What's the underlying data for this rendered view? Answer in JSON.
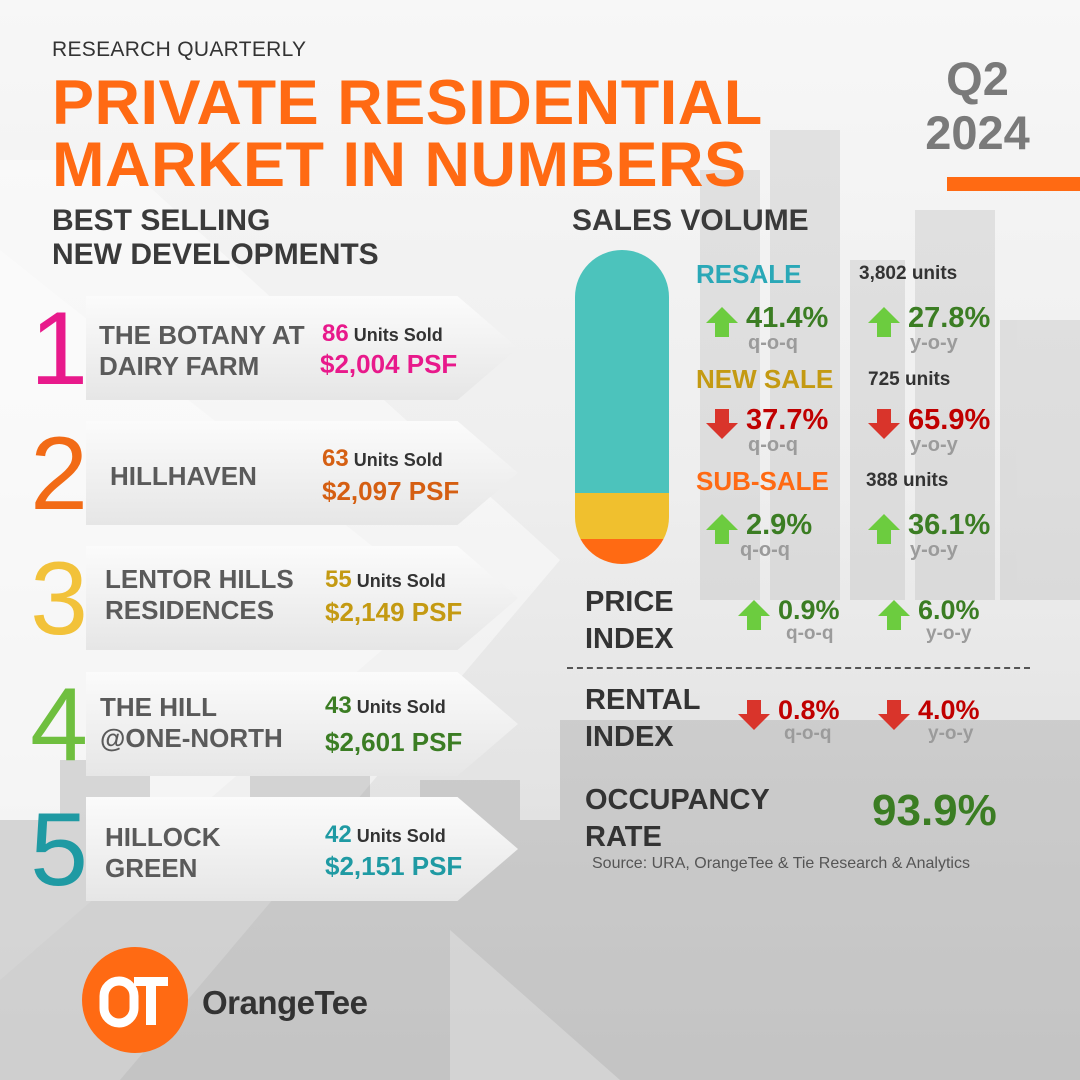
{
  "colors": {
    "brand_orange": "#ff6a13",
    "grey_text": "#3a3a3a",
    "rank1": "#e8198b",
    "rank2": "#f26b16",
    "rank3": "#f2c23a",
    "rank4": "#6fbf3f",
    "rank5": "#1f9aa3",
    "psf1": "#e8198b",
    "psf2": "#d55f12",
    "psf3": "#c49a12",
    "psf4": "#3b7d23",
    "psf5": "#1f9aa3",
    "resale": "#4cc3bc",
    "new_sale": "#f0c02e",
    "sub_sale": "#ff6a13",
    "up_arrow": "#6ccc3f",
    "down_arrow": "#d9342b"
  },
  "header": {
    "eyebrow": "RESEARCH QUARTERLY",
    "title_line1": "PRIVATE RESIDENTIAL",
    "title_line2": "MARKET IN NUMBERS",
    "quarter": "Q2",
    "year": "2024"
  },
  "best_selling": {
    "heading_line1": "BEST SELLING",
    "heading_line2": "NEW DEVELOPMENTS",
    "units_label": "Units Sold",
    "items": [
      {
        "rank": "1",
        "name_line1": "THE BOTANY AT",
        "name_line2": "DAIRY FARM",
        "units": "86",
        "psf": "$2,004 PSF"
      },
      {
        "rank": "2",
        "name_line1": "HILLHAVEN",
        "name_line2": "",
        "units": "63",
        "psf": "$2,097 PSF"
      },
      {
        "rank": "3",
        "name_line1": "LENTOR HILLS",
        "name_line2": "RESIDENCES",
        "units": "55",
        "psf": "$2,149 PSF"
      },
      {
        "rank": "4",
        "name_line1": "THE HILL",
        "name_line2": "@ONE-NORTH",
        "units": "43",
        "psf": "$2,601 PSF"
      },
      {
        "rank": "5",
        "name_line1": "HILLOCK",
        "name_line2": "GREEN",
        "units": "42",
        "psf": "$2,151 PSF"
      }
    ]
  },
  "sales_volume": {
    "heading": "SALES VOLUME",
    "categories": [
      {
        "label": "RESALE",
        "units": "3,802 units",
        "qoq": {
          "value": "41.4%",
          "dir": "up",
          "period": "q-o-q"
        },
        "yoy": {
          "value": "27.8%",
          "dir": "up",
          "period": "y-o-y"
        }
      },
      {
        "label": "NEW SALE",
        "units": "725 units",
        "qoq": {
          "value": "37.7%",
          "dir": "down",
          "period": "q-o-q"
        },
        "yoy": {
          "value": "65.9%",
          "dir": "down",
          "period": "y-o-y"
        }
      },
      {
        "label": "SUB-SALE",
        "units": "388 units",
        "qoq": {
          "value": "2.9%",
          "dir": "up",
          "period": "q-o-q"
        },
        "yoy": {
          "value": "36.1%",
          "dir": "up",
          "period": "y-o-y"
        }
      }
    ],
    "bar_units": [
      3802,
      725,
      388
    ]
  },
  "price_index": {
    "label_line1": "PRICE",
    "label_line2": "INDEX",
    "qoq": {
      "value": "0.9%",
      "dir": "up",
      "period": "q-o-q"
    },
    "yoy": {
      "value": "6.0%",
      "dir": "up",
      "period": "y-o-y"
    }
  },
  "rental_index": {
    "label_line1": "RENTAL",
    "label_line2": "INDEX",
    "qoq": {
      "value": "0.8%",
      "dir": "down",
      "period": "q-o-q"
    },
    "yoy": {
      "value": "4.0%",
      "dir": "down",
      "period": "y-o-y"
    }
  },
  "occupancy": {
    "label_line1": "OCCUPANCY",
    "label_line2": "RATE",
    "value": "93.9%"
  },
  "source": "Source: URA, OrangeTee  & Tie Research & Analytics",
  "logo": {
    "monogram": "OT",
    "name": "OrangeTee"
  }
}
